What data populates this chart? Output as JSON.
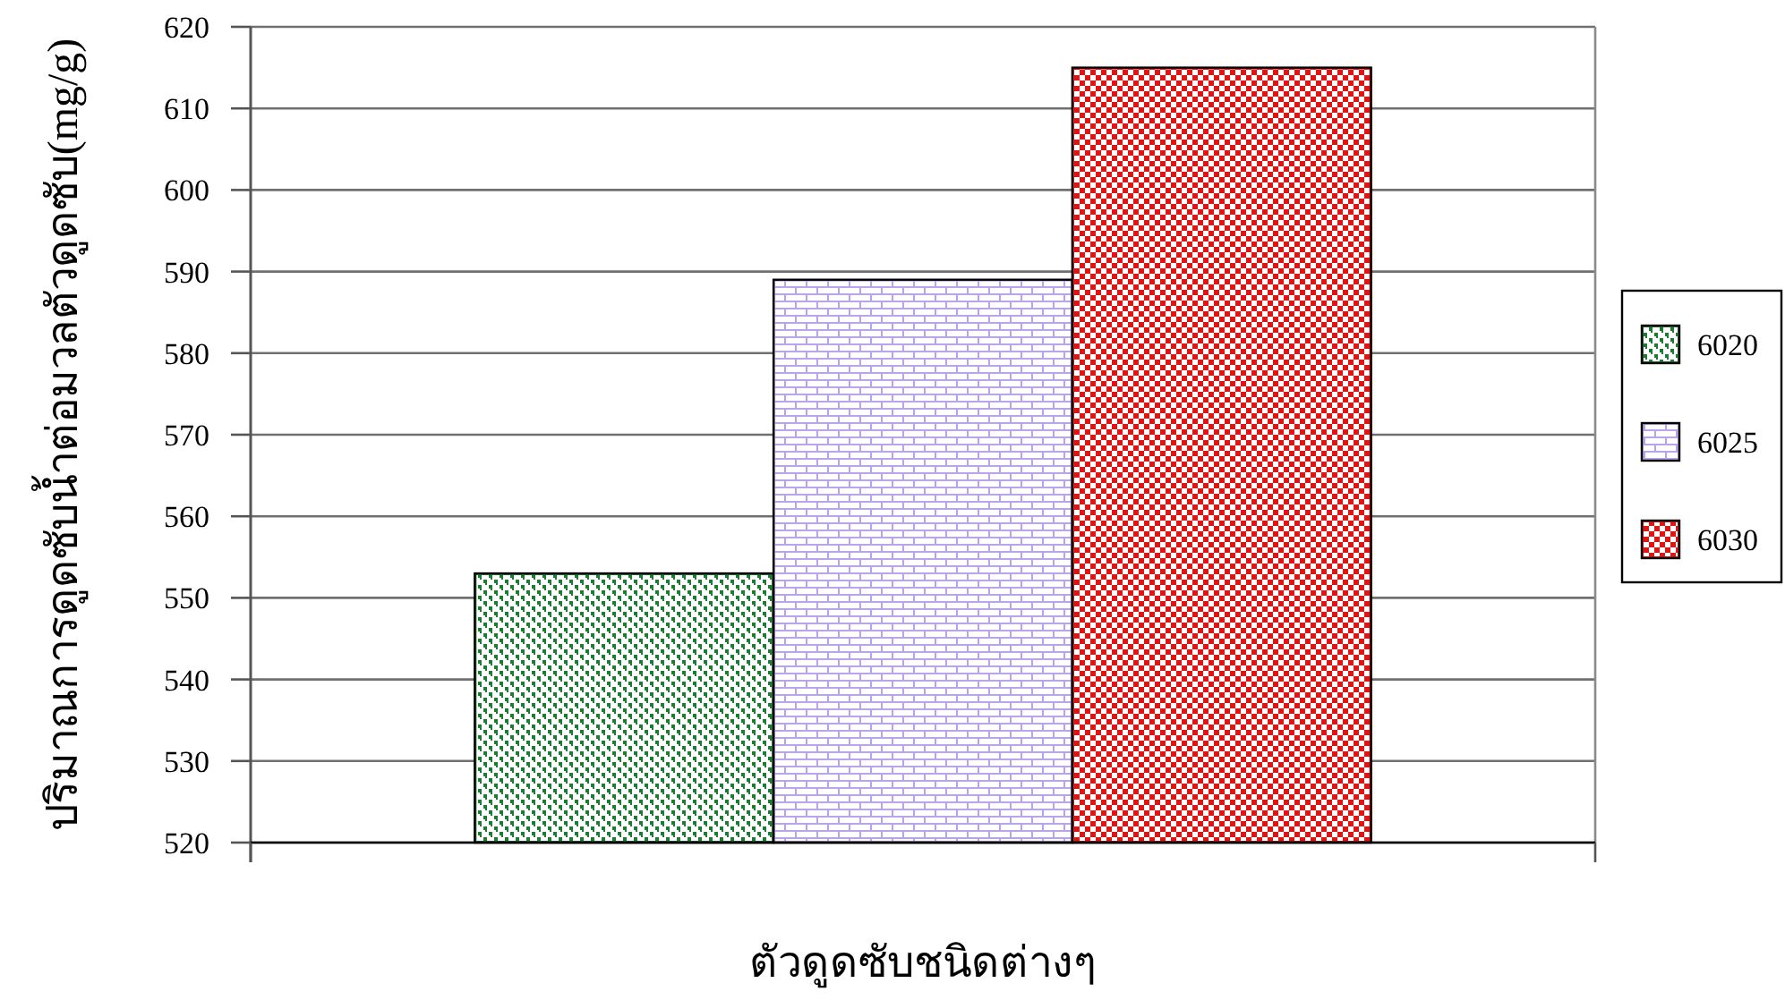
{
  "chart_data": {
    "type": "bar",
    "xlabel": "ตัวดูดซับชนิดต่างๆ",
    "ylabel": "ปริมาณการดูดซับน้ำต่อมวลตัวดูดซับ(mg/g)",
    "categories": [
      null
    ],
    "series": [
      {
        "name": "6020",
        "color": "#1e7b34",
        "values": [
          553
        ]
      },
      {
        "name": "6025",
        "color": "#b9a3ea",
        "values": [
          589
        ]
      },
      {
        "name": "6030",
        "color": "#dd1515",
        "values": [
          615
        ]
      }
    ],
    "ylim": [
      520,
      620
    ],
    "yticks": [
      520,
      530,
      540,
      550,
      560,
      570,
      580,
      590,
      600,
      610,
      620
    ],
    "grid": "y",
    "legend": "right"
  }
}
